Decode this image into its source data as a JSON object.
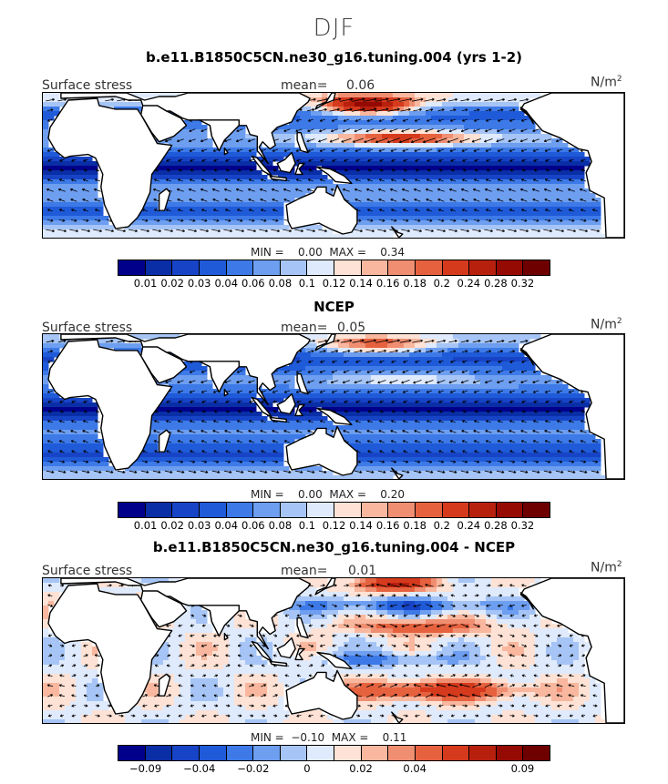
{
  "season": "DJF",
  "colors": [
    "#00008b",
    "#0a2ea6",
    "#1744c6",
    "#1f5ad8",
    "#3d7ae8",
    "#6d9ef0",
    "#a6c5f6",
    "#dfeafc",
    "#fde2d5",
    "#f8b79e",
    "#f08e72",
    "#e6623f",
    "#d63a1d",
    "#b8200e",
    "#960a04",
    "#6e0000"
  ],
  "diff_colors": [
    "#00008b",
    "#0a2ea6",
    "#1744c6",
    "#1f5ad8",
    "#3d7ae8",
    "#6d9ef0",
    "#a6c5f6",
    "#dfeafc",
    "#fde2d5",
    "#f8b79e",
    "#f08e72",
    "#e6623f",
    "#d63a1d",
    "#b8200e",
    "#960a04",
    "#6e0000"
  ],
  "panels": [
    {
      "title": "b.e11.B1850C5CN.ne30_g16.tuning.004 (yrs 1-2)",
      "left_label": "Surface stress",
      "mean_label": "mean=",
      "mean_value": "0.06",
      "unit": "N/m",
      "unit_sup": "2",
      "minmax": "MIN =    0.00  MAX =    0.34",
      "ticks": [
        "0.01",
        "0.02",
        "0.03",
        "0.04",
        "0.06",
        "0.08",
        "0.1",
        "0.12",
        "0.14",
        "0.16",
        "0.18",
        "0.2",
        "0.24",
        "0.28",
        "0.32"
      ]
    },
    {
      "title": "NCEP",
      "left_label": "Surface stress",
      "mean_label": "mean=",
      "mean_value": "0.05",
      "unit": "N/m",
      "unit_sup": "2",
      "minmax": "MIN =    0.00  MAX =    0.20",
      "ticks": [
        "0.01",
        "0.02",
        "0.03",
        "0.04",
        "0.06",
        "0.08",
        "0.1",
        "0.12",
        "0.14",
        "0.16",
        "0.18",
        "0.2",
        "0.24",
        "0.28",
        "0.32"
      ]
    },
    {
      "title": "b.e11.B1850C5CN.ne30_g16.tuning.004 - NCEP",
      "left_label": "Surface stress",
      "mean_label": "mean=",
      "mean_value": "0.01",
      "unit": "N/m",
      "unit_sup": "2",
      "minmax": "MIN =  −0.10  MAX =    0.11",
      "ticks": [
        "−0.09",
        "−0.04",
        "−0.02",
        "0",
        "0.02",
        "0.04",
        "0.09"
      ]
    }
  ]
}
